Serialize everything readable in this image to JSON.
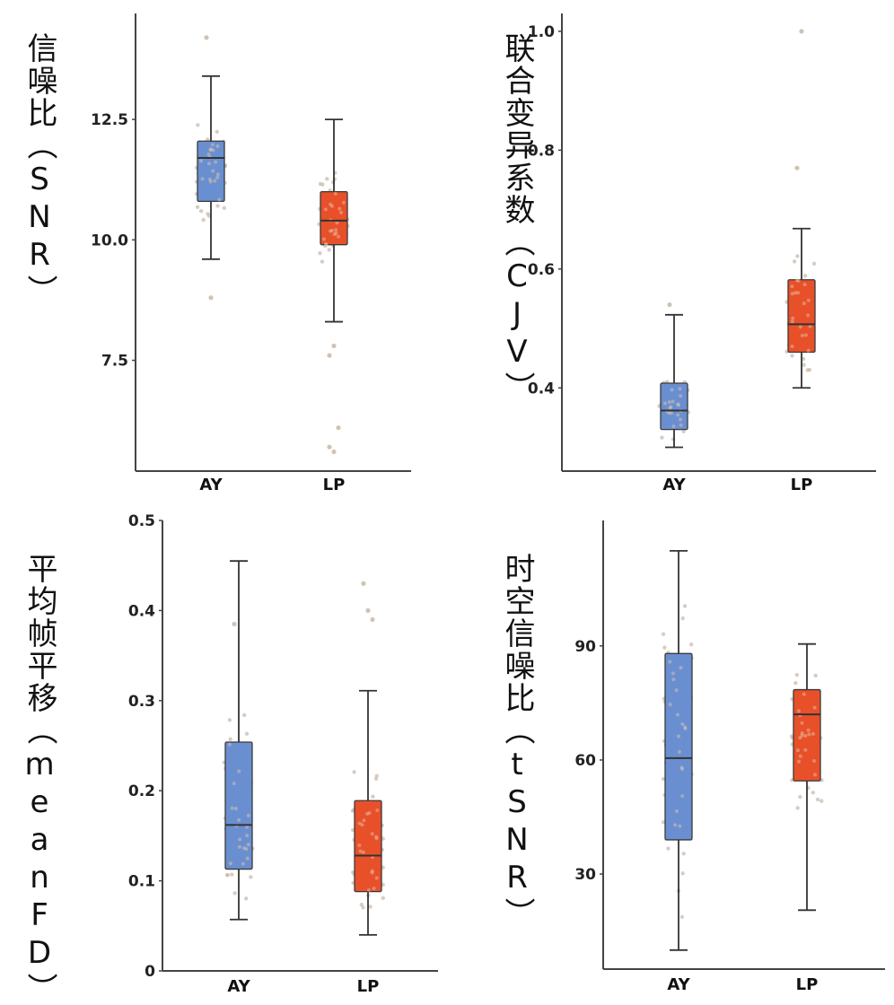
{
  "colors": {
    "AY": "#6a8fd0",
    "LP": "#e8502a",
    "axis": "#444444",
    "whisker": "#333333",
    "median": "#333333",
    "jitter": "#c9b8a6"
  },
  "chart_data": [
    {
      "type": "box",
      "title": "",
      "ylabel": "信噪比（SNR）",
      "categories": [
        "AY",
        "LP"
      ],
      "ylim": [
        5.2,
        14.7
      ],
      "yticks": [
        7.5,
        10.0,
        12.5
      ],
      "ytick_labels": [
        "7.5",
        "10.0",
        "12.5"
      ],
      "boxes": [
        {
          "name": "AY",
          "min": 9.6,
          "q1": 10.8,
          "median": 11.7,
          "q3": 12.05,
          "max": 13.4
        },
        {
          "name": "LP",
          "min": 8.3,
          "q1": 9.9,
          "median": 10.4,
          "q3": 11.0,
          "max": 12.5
        }
      ],
      "outliers": [
        {
          "name": "AY",
          "values": [
            14.2,
            8.8
          ]
        },
        {
          "name": "LP",
          "values": [
            7.6,
            7.8,
            6.1,
            5.7,
            5.6
          ]
        }
      ]
    },
    {
      "type": "box",
      "title": "",
      "ylabel": "联合变异系数（CJV）",
      "categories": [
        "AY",
        "LP"
      ],
      "ylim": [
        0.26,
        1.03
      ],
      "yticks": [
        0.4,
        0.6,
        0.8,
        1.0
      ],
      "ytick_labels": [
        "0.4",
        "0.6",
        "0.8",
        "1.0"
      ],
      "boxes": [
        {
          "name": "AY",
          "min": 0.3,
          "q1": 0.33,
          "median": 0.362,
          "q3": 0.408,
          "max": 0.523
        },
        {
          "name": "LP",
          "min": 0.4,
          "q1": 0.46,
          "median": 0.507,
          "q3": 0.582,
          "max": 0.668
        }
      ],
      "outliers": [
        {
          "name": "AY",
          "values": [
            0.54
          ]
        },
        {
          "name": "LP",
          "values": [
            0.77,
            1.0
          ]
        }
      ]
    },
    {
      "type": "box",
      "title": "",
      "ylabel": "平均帧平移（meanFD）",
      "categories": [
        "AY",
        "LP"
      ],
      "ylim": [
        0,
        0.5
      ],
      "yticks": [
        0,
        0.1,
        0.2,
        0.3,
        0.4,
        0.5
      ],
      "ytick_labels": [
        "0",
        "0.1",
        "0.2",
        "0.3",
        "0.4",
        "0.5"
      ],
      "boxes": [
        {
          "name": "AY",
          "min": 0.057,
          "q1": 0.113,
          "median": 0.162,
          "q3": 0.254,
          "max": 0.455
        },
        {
          "name": "LP",
          "min": 0.04,
          "q1": 0.088,
          "median": 0.128,
          "q3": 0.189,
          "max": 0.311
        }
      ],
      "outliers": [
        {
          "name": "AY",
          "values": [
            0.385
          ]
        },
        {
          "name": "LP",
          "values": [
            0.43,
            0.4,
            0.39
          ]
        }
      ]
    },
    {
      "type": "box",
      "title": "",
      "ylabel": "时空信噪比（tSNR）",
      "categories": [
        "AY",
        "LP"
      ],
      "ylim": [
        5,
        123
      ],
      "yticks": [
        30,
        60,
        90
      ],
      "ytick_labels": [
        "30",
        "60",
        "90"
      ],
      "boxes": [
        {
          "name": "AY",
          "min": 10,
          "q1": 39,
          "median": 60.5,
          "q3": 88,
          "max": 115
        },
        {
          "name": "LP",
          "min": 20.5,
          "q1": 54.5,
          "median": 72,
          "q3": 78.5,
          "max": 90.5
        }
      ],
      "outliers": [
        {
          "name": "AY",
          "values": []
        },
        {
          "name": "LP",
          "values": []
        }
      ]
    }
  ]
}
